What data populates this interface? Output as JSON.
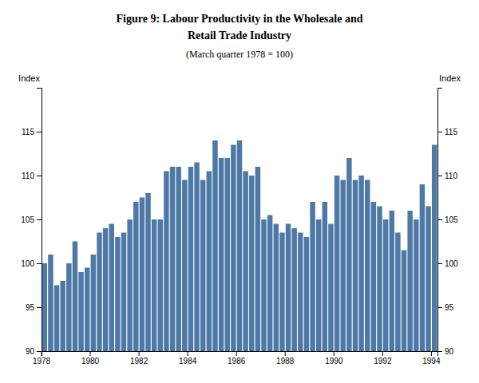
{
  "chart_data": {
    "type": "bar",
    "title": [
      "Figure 9: Labour Productivity in the Wholesale and",
      "Retail Trade Industry"
    ],
    "subtitle": "(March quarter 1978 = 100)",
    "ylabel": "Index",
    "y2label": "Index",
    "categories": [
      "1978",
      null,
      null,
      null,
      null,
      null,
      null,
      null,
      "1980",
      null,
      null,
      null,
      null,
      null,
      null,
      null,
      "1982",
      null,
      null,
      null,
      null,
      null,
      null,
      null,
      "1984",
      null,
      null,
      null,
      null,
      null,
      null,
      null,
      "1986",
      null,
      null,
      null,
      null,
      null,
      null,
      null,
      "1988",
      null,
      null,
      null,
      null,
      null,
      null,
      null,
      "1990",
      null,
      null,
      null,
      null,
      null,
      null,
      null,
      "1992",
      null,
      null,
      null,
      null,
      null,
      null,
      null,
      "1994"
    ],
    "values": [
      100.0,
      101.0,
      97.5,
      98.0,
      100.0,
      102.5,
      99.0,
      99.5,
      101.0,
      103.5,
      104.0,
      104.5,
      103.0,
      103.5,
      105.0,
      107.0,
      107.5,
      108.0,
      105.0,
      105.0,
      110.5,
      111.0,
      111.0,
      109.5,
      111.0,
      111.5,
      109.5,
      110.5,
      114.0,
      112.0,
      112.0,
      113.5,
      114.0,
      110.5,
      110.0,
      111.0,
      105.0,
      105.5,
      104.5,
      103.5,
      104.5,
      104.0,
      103.5,
      103.0,
      107.0,
      105.0,
      107.0,
      104.5,
      110.0,
      109.5,
      112.0,
      109.5,
      110.0,
      109.5,
      107.0,
      106.5,
      105.0,
      106.0,
      103.5,
      101.5,
      106.0,
      105.0,
      109.0,
      106.5,
      113.5
    ],
    "ylim": [
      90,
      120
    ],
    "yticks": [
      90,
      95,
      100,
      105,
      110,
      115
    ],
    "y2lim": [
      90,
      120
    ],
    "y2ticks": [
      90,
      95,
      100,
      105,
      110,
      115
    ]
  }
}
